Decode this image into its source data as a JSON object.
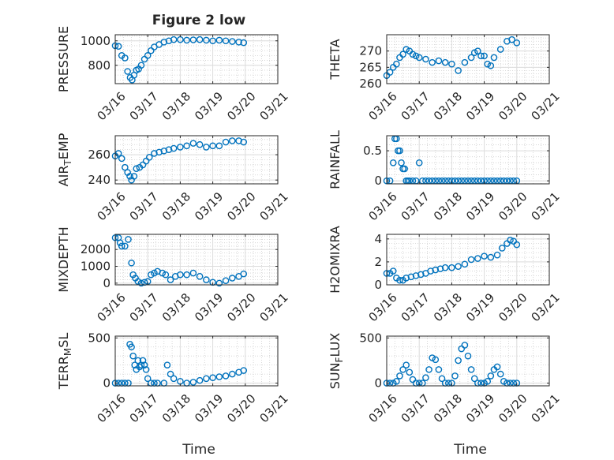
{
  "figure": {
    "title": "Figure 2 low",
    "xlabel": "Time",
    "marker_color": "#0072BD"
  },
  "chart_data": [
    {
      "type": "scatter",
      "ylabel": "PRESSURE",
      "ylim": [
        650,
        1050
      ],
      "yticks": [
        800,
        1000
      ],
      "xticks": [
        "03/16",
        "03/17",
        "03/18",
        "03/19",
        "03/20",
        "03/21"
      ],
      "xlim": [
        0,
        5
      ],
      "x": [
        0.0,
        0.1,
        0.2,
        0.3,
        0.38,
        0.46,
        0.52,
        0.58,
        0.65,
        0.72,
        0.8,
        0.9,
        1.0,
        1.1,
        1.2,
        1.35,
        1.5,
        1.65,
        1.8,
        2.0,
        2.2,
        2.4,
        2.6,
        2.8,
        3.0,
        3.2,
        3.4,
        3.6,
        3.8,
        3.95
      ],
      "y": [
        960,
        955,
        880,
        860,
        750,
        700,
        680,
        720,
        760,
        770,
        800,
        850,
        880,
        920,
        950,
        970,
        990,
        1000,
        1010,
        1010,
        1005,
        1008,
        1010,
        1005,
        1000,
        1005,
        1000,
        995,
        990,
        985
      ]
    },
    {
      "type": "scatter",
      "ylabel": "THETA",
      "ylim": [
        260,
        275
      ],
      "yticks": [
        260,
        265,
        270
      ],
      "xticks": [
        "03/16",
        "03/17",
        "03/18",
        "03/19",
        "03/20",
        "03/21"
      ],
      "xlim": [
        0,
        5
      ],
      "x": [
        0.0,
        0.1,
        0.2,
        0.3,
        0.4,
        0.5,
        0.6,
        0.7,
        0.8,
        0.9,
        1.0,
        1.2,
        1.4,
        1.6,
        1.8,
        2.0,
        2.2,
        2.4,
        2.6,
        2.7,
        2.8,
        2.9,
        3.0,
        3.1,
        3.2,
        3.3,
        3.5,
        3.7,
        3.85,
        4.0
      ],
      "y": [
        262.5,
        263.5,
        265,
        266,
        268,
        269,
        270.5,
        270,
        269,
        268.5,
        268,
        267.5,
        266.5,
        267,
        266.5,
        266,
        264,
        266.5,
        268,
        269.5,
        270,
        268.5,
        268.5,
        266,
        265.5,
        268,
        270.5,
        273,
        273.5,
        272.5
      ]
    },
    {
      "type": "scatter",
      "ylabel": "AIR_TEMP",
      "ylim": [
        237,
        275
      ],
      "yticks": [
        240,
        260
      ],
      "xticks": [
        "03/16",
        "03/17",
        "03/18",
        "03/19",
        "03/20",
        "03/21"
      ],
      "xlim": [
        0,
        5
      ],
      "x": [
        0.0,
        0.1,
        0.2,
        0.3,
        0.38,
        0.45,
        0.5,
        0.58,
        0.65,
        0.75,
        0.85,
        0.95,
        1.05,
        1.2,
        1.35,
        1.5,
        1.65,
        1.8,
        2.0,
        2.2,
        2.4,
        2.6,
        2.8,
        3.0,
        3.2,
        3.4,
        3.6,
        3.8,
        3.95
      ],
      "y": [
        259,
        261,
        257,
        250,
        246,
        243,
        240,
        243,
        249,
        250,
        252,
        255,
        258,
        261,
        262,
        263,
        264,
        265,
        266,
        267,
        269,
        268,
        266,
        267,
        267,
        270,
        271,
        271,
        270
      ]
    },
    {
      "type": "scatter",
      "ylabel": "RAINFALL",
      "ylim": [
        -0.05,
        0.75
      ],
      "yticks": [
        0,
        0.5
      ],
      "xticks": [
        "03/16",
        "03/17",
        "03/18",
        "03/19",
        "03/20",
        "03/21"
      ],
      "xlim": [
        0,
        5
      ],
      "x": [
        0.0,
        0.1,
        0.2,
        0.25,
        0.3,
        0.35,
        0.4,
        0.45,
        0.5,
        0.55,
        0.6,
        0.65,
        0.7,
        0.8,
        0.9,
        1.0,
        1.1,
        1.2,
        1.3,
        1.4,
        1.5,
        1.6,
        1.7,
        1.8,
        1.9,
        2.0,
        2.1,
        2.2,
        2.3,
        2.4,
        2.5,
        2.6,
        2.7,
        2.8,
        2.9,
        3.0,
        3.1,
        3.2,
        3.3,
        3.4,
        3.5,
        3.6,
        3.7,
        3.8,
        3.9,
        4.0
      ],
      "y": [
        0,
        0,
        0.3,
        0.7,
        0.7,
        0.5,
        0.5,
        0.3,
        0.2,
        0.2,
        0,
        0,
        0,
        0,
        0,
        0.3,
        0,
        0,
        0,
        0,
        0,
        0,
        0,
        0,
        0,
        0,
        0,
        0,
        0,
        0,
        0,
        0,
        0,
        0,
        0,
        0,
        0,
        0,
        0,
        0,
        0,
        0,
        0,
        0,
        0,
        0
      ]
    },
    {
      "type": "scatter",
      "ylabel": "MIXDEPTH",
      "ylim": [
        -100,
        2900
      ],
      "yticks": [
        0,
        1000,
        2000
      ],
      "xticks": [
        "03/16",
        "03/17",
        "03/18",
        "03/19",
        "03/20",
        "03/21"
      ],
      "xlim": [
        0,
        5
      ],
      "x": [
        0.0,
        0.1,
        0.15,
        0.2,
        0.3,
        0.4,
        0.5,
        0.55,
        0.62,
        0.7,
        0.8,
        0.9,
        1.0,
        1.1,
        1.2,
        1.3,
        1.45,
        1.55,
        1.7,
        1.85,
        2.0,
        2.2,
        2.4,
        2.6,
        2.8,
        3.0,
        3.2,
        3.4,
        3.6,
        3.8,
        3.95
      ],
      "y": [
        2700,
        2700,
        2400,
        2200,
        2200,
        2600,
        1200,
        500,
        300,
        100,
        0,
        50,
        100,
        500,
        600,
        700,
        600,
        500,
        200,
        400,
        500,
        500,
        600,
        400,
        200,
        50,
        0,
        150,
        300,
        400,
        550
      ]
    },
    {
      "type": "scatter",
      "ylabel": "H2OMIXRA",
      "ylim": [
        0,
        4.4
      ],
      "yticks": [
        0,
        2,
        4
      ],
      "xticks": [
        "03/16",
        "03/17",
        "03/18",
        "03/19",
        "03/20",
        "03/21"
      ],
      "xlim": [
        0,
        5
      ],
      "x": [
        0.0,
        0.1,
        0.2,
        0.3,
        0.4,
        0.5,
        0.6,
        0.75,
        0.9,
        1.05,
        1.2,
        1.35,
        1.5,
        1.65,
        1.8,
        2.0,
        2.2,
        2.4,
        2.6,
        2.8,
        3.0,
        3.2,
        3.4,
        3.55,
        3.7,
        3.8,
        3.9,
        4.0
      ],
      "y": [
        1.0,
        1.0,
        1.2,
        0.6,
        0.4,
        0.4,
        0.6,
        0.7,
        0.8,
        0.9,
        1.0,
        1.2,
        1.3,
        1.4,
        1.5,
        1.5,
        1.6,
        1.8,
        2.2,
        2.3,
        2.5,
        2.4,
        2.6,
        3.2,
        3.6,
        3.9,
        3.8,
        3.5
      ]
    },
    {
      "type": "scatter",
      "ylabel": "TERR_MSL",
      "ylim": [
        -30,
        520
      ],
      "yticks": [
        0,
        500
      ],
      "xticks": [
        "03/16",
        "03/17",
        "03/18",
        "03/19",
        "03/20",
        "03/21"
      ],
      "xlim": [
        0,
        5
      ],
      "x": [
        0.0,
        0.1,
        0.2,
        0.3,
        0.4,
        0.45,
        0.5,
        0.55,
        0.6,
        0.65,
        0.7,
        0.75,
        0.8,
        0.85,
        0.9,
        0.95,
        1.0,
        1.1,
        1.2,
        1.3,
        1.5,
        1.6,
        1.7,
        1.8,
        2.0,
        2.2,
        2.4,
        2.6,
        2.8,
        3.0,
        3.2,
        3.4,
        3.6,
        3.8,
        3.95
      ],
      "y": [
        0,
        0,
        0,
        0,
        0,
        430,
        400,
        300,
        200,
        150,
        250,
        180,
        200,
        250,
        200,
        150,
        50,
        0,
        0,
        0,
        0,
        200,
        100,
        50,
        20,
        0,
        10,
        30,
        50,
        60,
        70,
        80,
        100,
        120,
        140
      ]
    },
    {
      "type": "scatter",
      "ylabel": "SUN_FLUX",
      "ylim": [
        -30,
        520
      ],
      "yticks": [
        0,
        500
      ],
      "xticks": [
        "03/16",
        "03/17",
        "03/18",
        "03/19",
        "03/20",
        "03/21"
      ],
      "xlim": [
        0,
        5
      ],
      "x": [
        0.0,
        0.1,
        0.2,
        0.3,
        0.4,
        0.5,
        0.6,
        0.7,
        0.8,
        0.9,
        1.0,
        1.1,
        1.2,
        1.3,
        1.4,
        1.5,
        1.6,
        1.7,
        1.8,
        1.9,
        2.0,
        2.1,
        2.2,
        2.3,
        2.4,
        2.5,
        2.6,
        2.7,
        2.8,
        2.9,
        3.0,
        3.1,
        3.2,
        3.3,
        3.4,
        3.5,
        3.6,
        3.7,
        3.8,
        3.9,
        4.0
      ],
      "y": [
        0,
        0,
        0,
        20,
        80,
        150,
        200,
        120,
        40,
        0,
        0,
        0,
        60,
        150,
        280,
        260,
        150,
        50,
        0,
        0,
        0,
        80,
        250,
        380,
        420,
        300,
        150,
        50,
        0,
        0,
        0,
        20,
        80,
        150,
        180,
        100,
        20,
        0,
        0,
        0,
        0
      ]
    }
  ]
}
